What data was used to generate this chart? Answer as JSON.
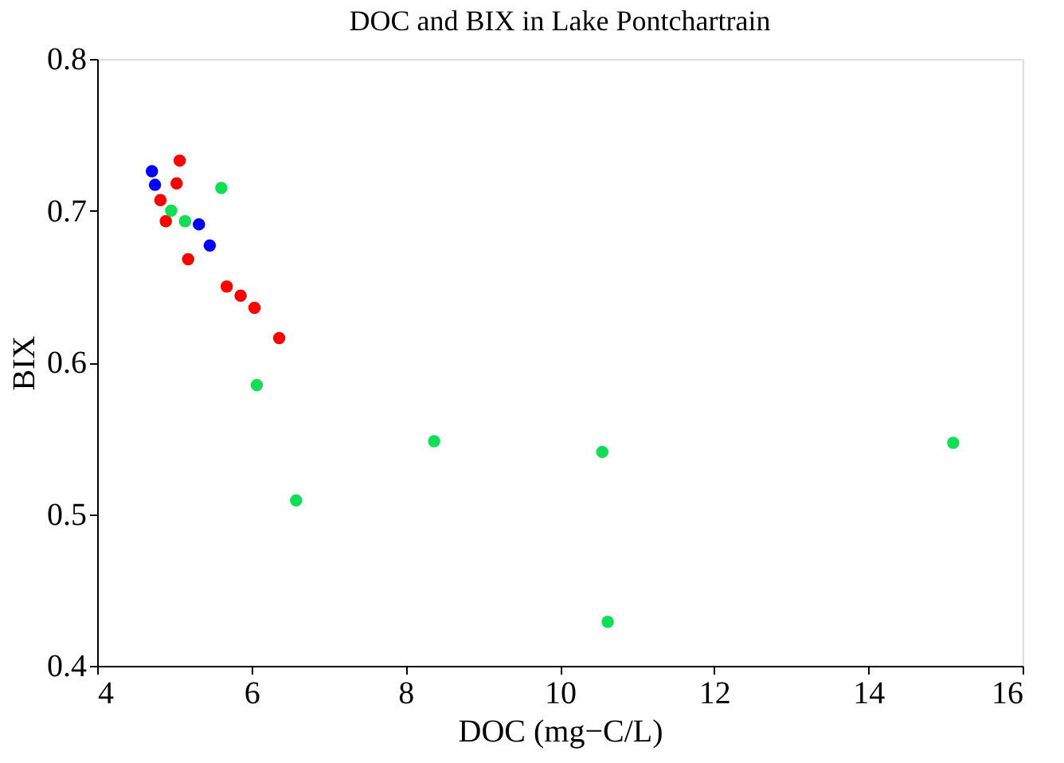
{
  "chart_data": {
    "type": "scatter",
    "title": "DOC and BIX in Lake Pontchartrain",
    "xlabel": "DOC (mg−C/L)",
    "ylabel": "BIX",
    "xlim": [
      4,
      16
    ],
    "xticks": [
      4,
      6,
      8,
      10,
      12,
      14,
      16
    ],
    "ylim": [
      0.4,
      0.8
    ],
    "yticks": [
      0.4,
      0.5,
      0.6,
      0.7,
      0.8
    ],
    "grid": false,
    "marker": "circle",
    "series": [
      {
        "color": "#ff0000",
        "x": [
          5.07,
          5.03,
          4.82,
          4.89,
          5.18,
          5.68,
          5.86,
          6.04,
          6.36
        ],
        "values": [
          0.733,
          0.718,
          0.707,
          0.693,
          0.668,
          0.65,
          0.644,
          0.636,
          0.616
        ]
      },
      {
        "color": "#0000ff",
        "x": [
          4.71,
          4.75,
          5.32,
          5.46
        ],
        "values": [
          0.726,
          0.717,
          0.691,
          0.677
        ]
      },
      {
        "color": "#11dd55",
        "x": [
          5.61,
          4.96,
          5.14,
          6.07,
          6.58,
          8.37,
          10.55,
          10.62,
          15.1
        ],
        "values": [
          0.715,
          0.7,
          0.693,
          0.585,
          0.509,
          0.548,
          0.541,
          0.429,
          0.547
        ]
      }
    ]
  }
}
